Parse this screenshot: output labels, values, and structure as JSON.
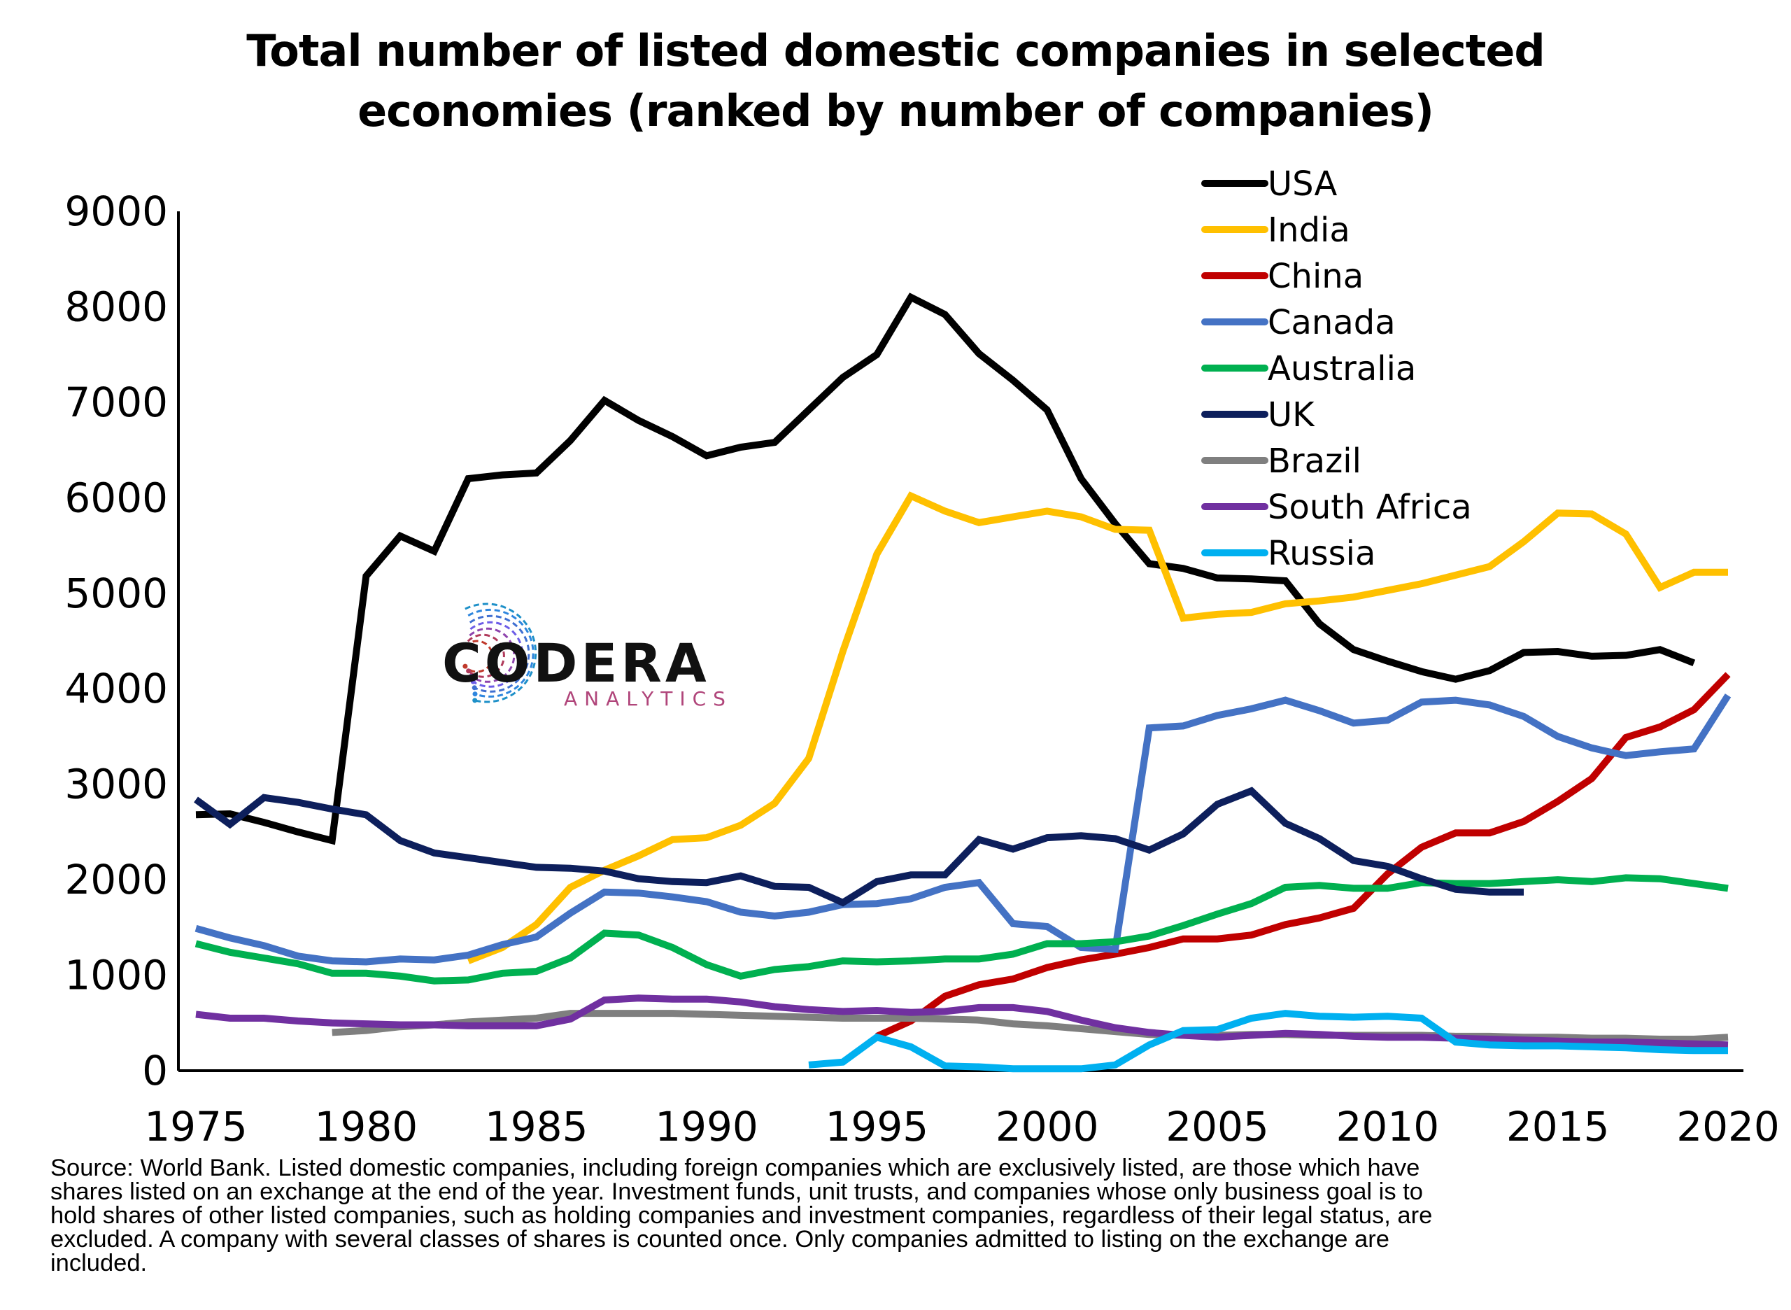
{
  "chart_data": {
    "type": "line",
    "title": "Total number of listed domestic companies in selected economies (ranked by number of companies)",
    "title_lines": [
      "Total number of listed domestic companies in selected",
      "economies (ranked by number of companies)"
    ],
    "xlim": [
      1975,
      2020
    ],
    "ylim": [
      0,
      9000
    ],
    "x_ticks": [
      1975,
      1980,
      1985,
      1990,
      1995,
      2000,
      2005,
      2010,
      2015,
      2020
    ],
    "y_ticks": [
      0,
      1000,
      2000,
      3000,
      4000,
      5000,
      6000,
      7000,
      8000,
      9000
    ],
    "grid": false,
    "legend_position": "top-right",
    "series": [
      {
        "name": "USA",
        "color": "#000000",
        "x0": 1975,
        "values": [
          2680,
          2690,
          2600,
          2500,
          2410,
          5180,
          5600,
          5440,
          6200,
          6240,
          6260,
          6600,
          7020,
          6810,
          6640,
          6440,
          6530,
          6580,
          6920,
          7260,
          7500,
          8100,
          7920,
          7510,
          7230,
          6920,
          6200,
          5730,
          5310,
          5260,
          5160,
          5150,
          5130,
          4680,
          4410,
          4290,
          4180,
          4100,
          4190,
          4380,
          4390,
          4340,
          4350,
          4410,
          4270
        ]
      },
      {
        "name": "India",
        "color": "#FFC000",
        "x0": 1983,
        "values": [
          1150,
          1290,
          1530,
          1920,
          2100,
          2250,
          2420,
          2440,
          2570,
          2800,
          3270,
          4390,
          5410,
          6020,
          5860,
          5740,
          5800,
          5860,
          5800,
          5670,
          5660,
          4740,
          4780,
          4800,
          4890,
          4920,
          4960,
          5030,
          5100,
          5190,
          5280,
          5540,
          5840,
          5830,
          5620,
          5060,
          5220,
          5220
        ]
      },
      {
        "name": "China",
        "color": "#C00000",
        "x0": 1995,
        "values": [
          360,
          520,
          780,
          900,
          960,
          1080,
          1160,
          1220,
          1290,
          1380,
          1380,
          1420,
          1530,
          1600,
          1700,
          2060,
          2340,
          2490,
          2490,
          2610,
          2820,
          3060,
          3490,
          3600,
          3780,
          4150
        ]
      },
      {
        "name": "Canada",
        "color": "#4472C4",
        "x0": 1975,
        "values": [
          1490,
          1390,
          1310,
          1200,
          1150,
          1140,
          1170,
          1160,
          1210,
          1320,
          1400,
          1650,
          1870,
          1860,
          1820,
          1770,
          1660,
          1620,
          1660,
          1740,
          1750,
          1800,
          1920,
          1970,
          1540,
          1510,
          1290,
          1270,
          3590,
          3610,
          3720,
          3790,
          3880,
          3770,
          3640,
          3670,
          3860,
          3880,
          3830,
          3710,
          3500,
          3380,
          3300,
          3340,
          3370,
          3930
        ]
      },
      {
        "name": "Australia",
        "color": "#00B050",
        "x0": 1975,
        "values": [
          1330,
          1240,
          1180,
          1120,
          1020,
          1020,
          990,
          940,
          950,
          1020,
          1040,
          1180,
          1440,
          1420,
          1290,
          1110,
          990,
          1060,
          1090,
          1150,
          1140,
          1150,
          1170,
          1170,
          1220,
          1330,
          1330,
          1350,
          1410,
          1520,
          1640,
          1750,
          1920,
          1940,
          1910,
          1910,
          1970,
          1960,
          1960,
          1980,
          2000,
          1980,
          2020,
          2010,
          1960,
          1910
        ]
      },
      {
        "name": "UK",
        "color": "#0D1F5C",
        "x0": 1975,
        "values": [
          2840,
          2580,
          2860,
          2810,
          2740,
          2680,
          2410,
          2280,
          2230,
          2180,
          2130,
          2120,
          2090,
          2010,
          1980,
          1970,
          2040,
          1930,
          1920,
          1760,
          1980,
          2050,
          2050,
          2420,
          2320,
          2440,
          2460,
          2430,
          2310,
          2480,
          2790,
          2930,
          2590,
          2430,
          2200,
          2140,
          2010,
          1900,
          1870,
          1870
        ]
      },
      {
        "name": "Brazil",
        "color": "#7F7F7F",
        "x0": 1979,
        "values": [
          400,
          420,
          460,
          480,
          510,
          530,
          550,
          600,
          600,
          600,
          600,
          590,
          580,
          570,
          560,
          550,
          550,
          550,
          540,
          530,
          490,
          470,
          440,
          410,
          380,
          370,
          370,
          380,
          380,
          370,
          370,
          370,
          370,
          360,
          360,
          350,
          350,
          340,
          340,
          330,
          330,
          350
        ]
      },
      {
        "name": "South Africa",
        "color": "#7030A0",
        "x0": 1975,
        "values": [
          590,
          550,
          550,
          520,
          500,
          490,
          480,
          480,
          470,
          470,
          470,
          540,
          740,
          760,
          750,
          750,
          720,
          670,
          640,
          620,
          630,
          610,
          620,
          660,
          660,
          620,
          530,
          450,
          400,
          370,
          350,
          370,
          390,
          380,
          360,
          350,
          350,
          340,
          330,
          320,
          310,
          300,
          300,
          290,
          280,
          270
        ]
      },
      {
        "name": "Russia",
        "color": "#00B0F0",
        "x0": 1993,
        "values": [
          60,
          90,
          350,
          250,
          50,
          40,
          20,
          20,
          20,
          60,
          270,
          420,
          430,
          550,
          600,
          570,
          560,
          570,
          550,
          300,
          270,
          260,
          260,
          250,
          240,
          220,
          210,
          210
        ]
      }
    ]
  },
  "logo": {
    "main_text": "CODERA",
    "sub_text": "ANALYTICS"
  },
  "source_lines": [
    "Source: World Bank. Listed domestic companies, including foreign companies which are exclusively listed, are those which have",
    "shares listed on an exchange at the end of the year. Investment funds, unit trusts, and companies whose only business goal is to",
    "hold shares of other listed companies, such as holding companies and investment companies, regardless of their legal status, are",
    "excluded. A company with several classes of shares is counted once. Only companies admitted to listing on the exchange are",
    "included."
  ]
}
